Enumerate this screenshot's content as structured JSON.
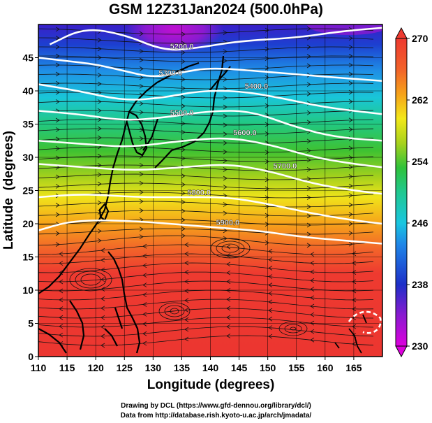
{
  "title": "GSM 12Z31Jan2024 (500.0hPa)",
  "xlabel": "Longitude (degrees)",
  "ylabel": "Latitude  (degrees)",
  "footer_line1": "Drawing by DCL (https://www.gfd-dennou.org/library/dcl/)",
  "footer_line2": "Data from http://database.rish.kyoto-u.ac.jp/arch/jmadata/",
  "chart_data": {
    "type": "heatmap",
    "xlim": [
      110,
      170
    ],
    "ylim": [
      0,
      50
    ],
    "x_ticks": [
      110,
      115,
      120,
      125,
      130,
      135,
      140,
      145,
      150,
      155,
      160,
      165
    ],
    "y_ticks": [
      0,
      5,
      10,
      15,
      20,
      25,
      30,
      35,
      40,
      45
    ],
    "grid": true,
    "colorbar": {
      "min": 230,
      "max": 270,
      "ticks": [
        230,
        238,
        246,
        254,
        262,
        270
      ],
      "colors": [
        "#dd00dd",
        "#7a1fd6",
        "#1d2fc8",
        "#1f86e8",
        "#19c6e0",
        "#20c890",
        "#2fc23a",
        "#a8d21c",
        "#f3e81a",
        "#f6a21a",
        "#f2622a",
        "#ee3a30"
      ]
    },
    "contours": [
      {
        "label": "5200.0",
        "points": [
          [
            112,
            47
          ],
          [
            118,
            49.5
          ],
          [
            125,
            48.5
          ],
          [
            132,
            46
          ],
          [
            138,
            46.5
          ],
          [
            145,
            47.5
          ],
          [
            155,
            48
          ],
          [
            163,
            49
          ],
          [
            170,
            49.5
          ]
        ]
      },
      {
        "label": "5300.0",
        "points": [
          [
            110,
            45
          ],
          [
            115,
            44.5
          ],
          [
            120,
            44
          ],
          [
            125,
            43
          ],
          [
            130,
            42
          ],
          [
            135,
            42.8
          ],
          [
            140,
            43.5
          ],
          [
            148,
            43
          ],
          [
            155,
            42.5
          ],
          [
            162,
            42
          ],
          [
            170,
            41.5
          ]
        ]
      },
      {
        "label": "5400.0",
        "points": [
          [
            110,
            41
          ],
          [
            117,
            40
          ],
          [
            125,
            38.5
          ],
          [
            132,
            39
          ],
          [
            138,
            40
          ],
          [
            145,
            40
          ],
          [
            152,
            39
          ],
          [
            160,
            37.5
          ],
          [
            170,
            36.5
          ]
        ]
      },
      {
        "label": "5500.0",
        "points": [
          [
            110,
            37
          ],
          [
            117,
            36.5
          ],
          [
            125,
            35.5
          ],
          [
            132,
            36
          ],
          [
            140,
            37
          ],
          [
            147,
            37
          ],
          [
            155,
            34.5
          ],
          [
            162,
            33
          ],
          [
            170,
            32.5
          ]
        ]
      },
      {
        "label": "5600.0",
        "points": [
          [
            110,
            32.5
          ],
          [
            118,
            32
          ],
          [
            126,
            31.5
          ],
          [
            135,
            32.5
          ],
          [
            143,
            33
          ],
          [
            150,
            32
          ],
          [
            158,
            30
          ],
          [
            165,
            29
          ],
          [
            170,
            28.5
          ]
        ]
      },
      {
        "label": "5700.0",
        "points": [
          [
            110,
            29
          ],
          [
            118,
            28.5
          ],
          [
            127,
            28
          ],
          [
            135,
            28.5
          ],
          [
            143,
            29
          ],
          [
            150,
            28
          ],
          [
            158,
            26
          ],
          [
            165,
            25
          ],
          [
            170,
            24.5
          ]
        ]
      },
      {
        "label": "5800.0",
        "points": [
          [
            110,
            24
          ],
          [
            118,
            24.5
          ],
          [
            127,
            24
          ],
          [
            135,
            24
          ],
          [
            143,
            24
          ],
          [
            150,
            23
          ],
          [
            158,
            21.5
          ],
          [
            165,
            20.5
          ],
          [
            170,
            20
          ]
        ]
      },
      {
        "label": "5900.0",
        "points": [
          [
            110,
            19
          ],
          [
            116,
            20.5
          ],
          [
            125,
            20.5
          ],
          [
            133,
            20
          ],
          [
            140,
            19.5
          ],
          [
            148,
            19
          ],
          [
            156,
            18
          ],
          [
            163,
            17.5
          ],
          [
            170,
            17
          ]
        ]
      }
    ]
  }
}
